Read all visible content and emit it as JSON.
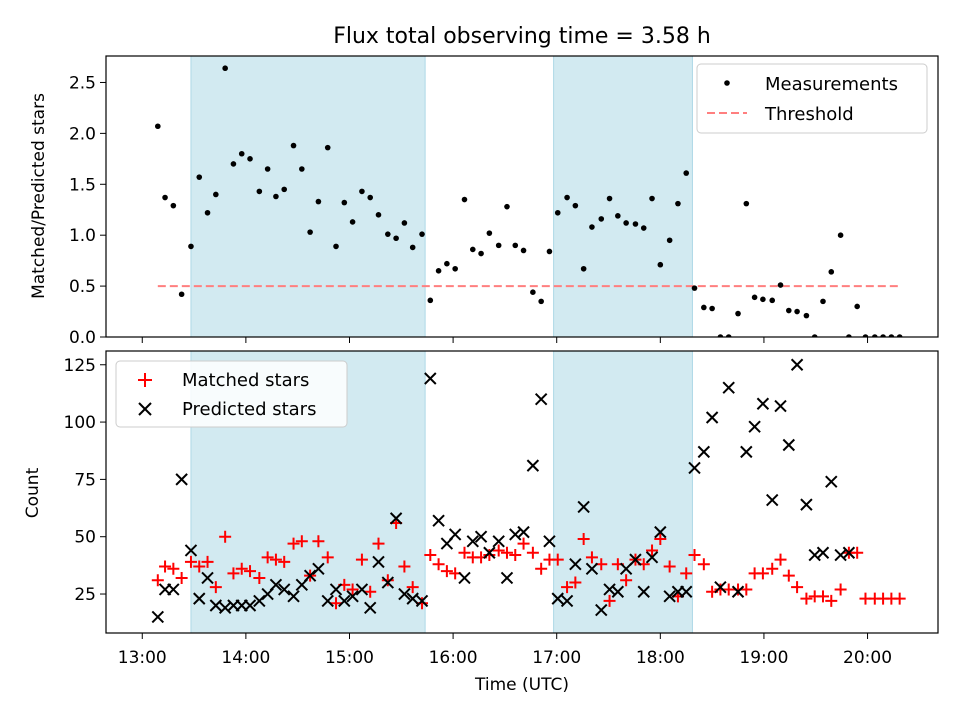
{
  "figure": {
    "title": "Flux total observing time = 3.58 h",
    "xlabel": "Time (UTC)",
    "x_ticks": [
      "13:00",
      "14:00",
      "15:00",
      "16:00",
      "17:00",
      "18:00",
      "19:00",
      "20:00"
    ],
    "x_tick_hours": [
      13,
      14,
      15,
      16,
      17,
      18,
      19,
      20
    ],
    "xlim_hours": [
      12.65,
      20.68
    ],
    "shaded_intervals_hours": [
      [
        13.47,
        15.73
      ],
      [
        16.97,
        18.31
      ]
    ],
    "shade_color": "#add8e6"
  },
  "chart_data": [
    {
      "type": "scatter",
      "ylabel": "Matched/Predicted stars",
      "ylim": [
        0,
        2.76
      ],
      "y_ticks": [
        "0.0",
        "0.5",
        "1.0",
        "1.5",
        "2.0",
        "2.5"
      ],
      "y_tick_values": [
        0,
        0.5,
        1.0,
        1.5,
        2.0,
        2.5
      ],
      "legend": {
        "placement": "top-right",
        "entries": [
          "Measurements",
          "Threshold"
        ]
      },
      "series": [
        {
          "name": "Measurements",
          "marker": "dot",
          "color": "#000000",
          "x": [
            13.15,
            13.22,
            13.3,
            13.38,
            13.47,
            13.55,
            13.63,
            13.71,
            13.8,
            13.88,
            13.96,
            14.04,
            14.13,
            14.21,
            14.29,
            14.37,
            14.46,
            14.54,
            14.62,
            14.7,
            14.79,
            14.87,
            14.95,
            15.03,
            15.12,
            15.2,
            15.28,
            15.37,
            15.45,
            15.53,
            15.61,
            15.7,
            15.78,
            15.86,
            15.94,
            16.02,
            16.11,
            16.19,
            16.27,
            16.35,
            16.44,
            16.52,
            16.6,
            16.68,
            16.77,
            16.85,
            16.93,
            17.01,
            17.1,
            17.18,
            17.26,
            17.34,
            17.43,
            17.51,
            17.59,
            17.67,
            17.76,
            17.84,
            17.92,
            18.0,
            18.09,
            18.17,
            18.25,
            18.33,
            18.42,
            18.5,
            18.58,
            18.66,
            18.75,
            18.83,
            18.91,
            18.99,
            19.08,
            19.16,
            19.24,
            19.32,
            19.41,
            19.49,
            19.57,
            19.65,
            19.74,
            19.82,
            19.9,
            19.98,
            20.07,
            20.15,
            20.23,
            20.31
          ],
          "y": [
            2.07,
            1.37,
            1.29,
            0.42,
            0.89,
            1.57,
            1.22,
            1.4,
            2.64,
            1.7,
            1.8,
            1.75,
            1.43,
            1.65,
            1.38,
            1.45,
            1.88,
            1.65,
            1.03,
            1.33,
            1.86,
            0.89,
            1.32,
            1.13,
            1.43,
            1.37,
            1.2,
            1.01,
            0.97,
            1.12,
            0.88,
            1.01,
            0.36,
            0.65,
            0.72,
            0.67,
            1.35,
            0.86,
            0.82,
            1.02,
            0.9,
            1.28,
            0.9,
            0.85,
            0.44,
            0.35,
            0.84,
            1.22,
            1.37,
            1.29,
            0.67,
            1.08,
            1.16,
            1.36,
            1.19,
            1.12,
            1.11,
            1.07,
            1.36,
            0.71,
            0.95,
            1.31,
            1.61,
            0.48,
            0.29,
            0.28,
            0.0,
            0.0,
            0.23,
            1.31,
            0.39,
            0.37,
            0.36,
            0.51,
            0.26,
            0.25,
            0.21,
            0.0,
            0.35,
            0.64,
            1.0,
            0.0,
            0.3,
            0.0,
            0.0,
            0.0,
            0.0,
            0.0
          ]
        },
        {
          "name": "Threshold",
          "type": "line",
          "style": "dashed",
          "color": "#ff7f7f",
          "x": [
            13.15,
            20.31
          ],
          "y": [
            0.5,
            0.5
          ]
        }
      ]
    },
    {
      "type": "scatter",
      "ylabel": "Count",
      "ylim": [
        8,
        131
      ],
      "y_ticks": [
        "25",
        "50",
        "75",
        "100",
        "125"
      ],
      "y_tick_values": [
        25,
        50,
        75,
        100,
        125
      ],
      "legend": {
        "placement": "top-left",
        "entries": [
          "Matched stars",
          "Predicted stars"
        ]
      },
      "series": [
        {
          "name": "Matched stars",
          "marker": "plus",
          "color": "#ff0000",
          "x": [
            13.15,
            13.22,
            13.3,
            13.38,
            13.47,
            13.55,
            13.63,
            13.71,
            13.8,
            13.88,
            13.96,
            14.04,
            14.13,
            14.21,
            14.29,
            14.37,
            14.46,
            14.54,
            14.62,
            14.7,
            14.79,
            14.87,
            14.95,
            15.03,
            15.12,
            15.2,
            15.28,
            15.37,
            15.45,
            15.53,
            15.61,
            15.7,
            15.78,
            15.86,
            15.94,
            16.02,
            16.11,
            16.19,
            16.27,
            16.35,
            16.44,
            16.52,
            16.6,
            16.68,
            16.77,
            16.85,
            16.93,
            17.01,
            17.1,
            17.18,
            17.26,
            17.34,
            17.43,
            17.51,
            17.59,
            17.67,
            17.76,
            17.84,
            17.92,
            18.0,
            18.09,
            18.17,
            18.25,
            18.33,
            18.42,
            18.5,
            18.58,
            18.66,
            18.75,
            18.83,
            18.91,
            18.99,
            19.08,
            19.16,
            19.24,
            19.32,
            19.41,
            19.49,
            19.57,
            19.65,
            19.74,
            19.82,
            19.9,
            19.98,
            20.07,
            20.15,
            20.23,
            20.31
          ],
          "y": [
            31,
            37,
            36,
            32,
            39,
            37,
            39,
            28,
            50,
            34,
            36,
            35,
            32,
            41,
            40,
            39,
            47,
            48,
            33,
            48,
            41,
            21,
            29,
            27,
            40,
            26,
            47,
            31,
            56,
            37,
            28,
            21,
            42,
            38,
            35,
            34,
            43,
            41,
            41,
            42,
            44,
            43,
            42,
            47,
            43,
            36,
            40,
            40,
            28,
            30,
            49,
            41,
            38,
            22,
            38,
            31,
            40,
            38,
            44,
            49,
            37,
            24,
            34,
            42,
            38,
            26,
            27,
            27,
            27,
            27,
            34,
            34,
            36,
            40,
            33,
            28,
            23,
            24,
            24,
            22,
            27,
            43,
            43,
            23,
            23,
            23,
            23,
            23
          ]
        },
        {
          "name": "Predicted stars",
          "marker": "x",
          "color": "#000000",
          "x": [
            13.15,
            13.22,
            13.3,
            13.38,
            13.47,
            13.55,
            13.63,
            13.71,
            13.8,
            13.88,
            13.96,
            14.04,
            14.13,
            14.21,
            14.29,
            14.37,
            14.46,
            14.54,
            14.62,
            14.7,
            14.79,
            14.87,
            14.95,
            15.03,
            15.12,
            15.2,
            15.28,
            15.37,
            15.45,
            15.53,
            15.61,
            15.7,
            15.78,
            15.86,
            15.94,
            16.02,
            16.11,
            16.19,
            16.27,
            16.35,
            16.44,
            16.52,
            16.6,
            16.68,
            16.77,
            16.85,
            16.93,
            17.01,
            17.1,
            17.18,
            17.26,
            17.34,
            17.43,
            17.51,
            17.59,
            17.67,
            17.76,
            17.84,
            17.92,
            18.0,
            18.09,
            18.17,
            18.25,
            18.33,
            18.42,
            18.5,
            18.58,
            18.66,
            18.75,
            18.83,
            18.91,
            18.99,
            19.08,
            19.16,
            19.24,
            19.32,
            19.41,
            19.49,
            19.57,
            19.65,
            19.74,
            19.82
          ],
          "y": [
            15,
            27,
            27,
            75,
            44,
            23,
            32,
            20,
            19,
            20,
            20,
            20,
            22,
            25,
            29,
            27,
            24,
            29,
            33,
            36,
            22,
            27,
            22,
            24,
            27,
            19,
            39,
            30,
            58,
            25,
            23,
            22,
            119,
            57,
            47,
            51,
            32,
            48,
            50,
            43,
            48,
            32,
            51,
            52,
            81,
            110,
            48,
            23,
            22,
            38,
            63,
            36,
            18,
            27,
            26,
            36,
            40,
            26,
            41,
            52,
            24,
            26,
            26,
            80,
            87,
            102,
            28,
            115,
            26,
            87,
            98,
            108,
            66,
            107,
            90,
            125,
            64,
            42,
            43,
            74,
            42,
            43
          ]
        }
      ]
    }
  ]
}
